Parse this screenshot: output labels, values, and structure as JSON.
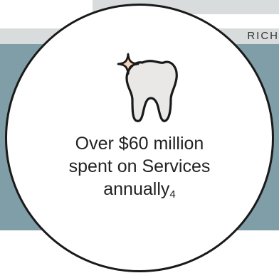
{
  "map": {
    "road_label": "RICH"
  },
  "stat": {
    "icon": "sparkling-tooth-icon",
    "line1": "Over $60 million",
    "line2": "spent on Services",
    "line3": "annually",
    "footnote": "4"
  },
  "colors": {
    "water": "#7f9ea8",
    "road": "#d9dcdd",
    "outline": "#1a1a1a",
    "sparkle": "#f7d3b9",
    "tooth": "#e9e8e6"
  }
}
